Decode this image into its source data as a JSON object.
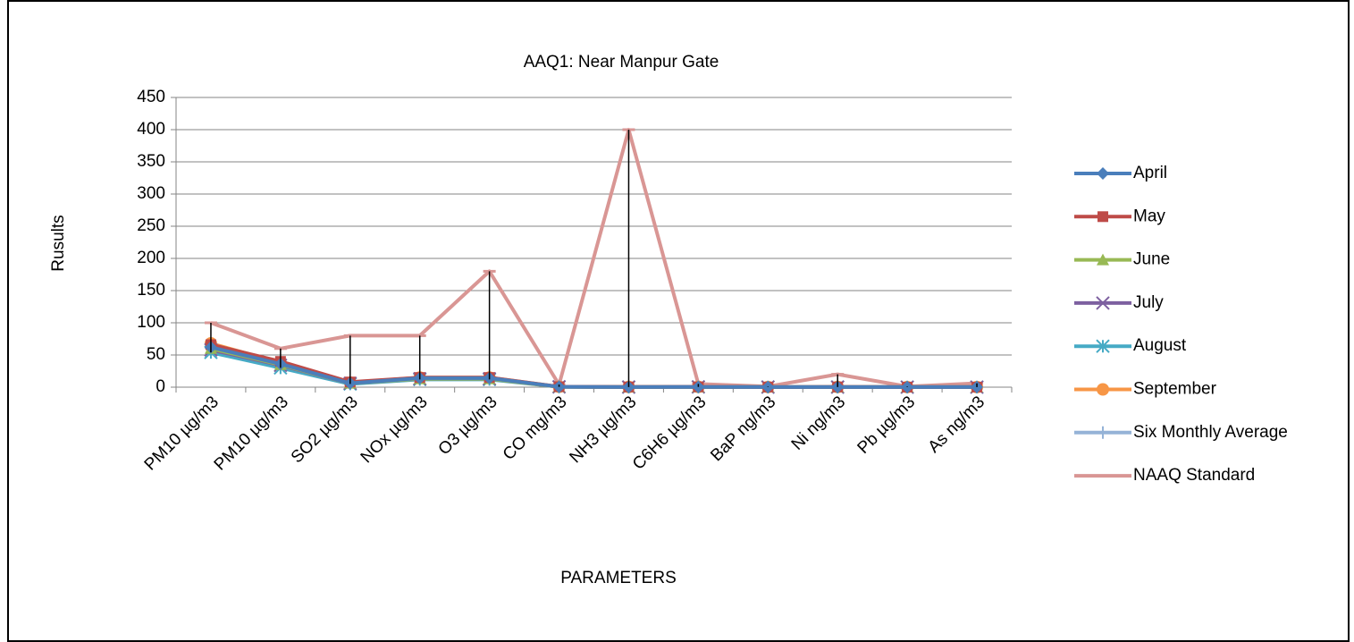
{
  "chart_data": {
    "type": "line",
    "title": "AAQ1: Near Manpur Gate",
    "y_label": "Rusults",
    "x_label": "PARAMETERS",
    "categories": [
      "PM10 µg/m3",
      "PM10 µg/m3",
      "SO2 µg/m3",
      "NOx µg/m3",
      "O3  µg/m3",
      "CO mg/m3",
      "NH3 µg/m3",
      "C6H6 µg/m3",
      "BaP ng/m3",
      "Ni ng/m3",
      "Pb µg/m3",
      "As ng/m3"
    ],
    "ylim": [
      0,
      450
    ],
    "yticks": [
      0,
      50,
      100,
      150,
      200,
      250,
      300,
      350,
      400,
      450
    ],
    "grid": true,
    "legend": "right",
    "high_low_lines": true,
    "series": [
      {
        "name": "April",
        "color": "#4a7ebb",
        "marker": "diamond",
        "values": [
          62,
          36,
          6,
          14,
          14,
          0.6,
          0.2,
          0.4,
          0.2,
          0.2,
          0.1,
          0.1
        ]
      },
      {
        "name": "May",
        "color": "#be4b48",
        "marker": "square",
        "values": [
          66,
          40,
          8,
          15,
          15,
          0.7,
          0.3,
          0.5,
          0.2,
          0.3,
          0.1,
          0.1
        ]
      },
      {
        "name": "June",
        "color": "#98b954",
        "marker": "triangle",
        "values": [
          60,
          35,
          6,
          13,
          13,
          0.5,
          0.2,
          0.4,
          0.2,
          0.2,
          0.1,
          0.1
        ]
      },
      {
        "name": "July",
        "color": "#7d60a0",
        "marker": "x",
        "values": [
          58,
          34,
          6,
          13,
          13,
          0.5,
          0.2,
          0.4,
          0.2,
          0.2,
          0.1,
          0.1
        ]
      },
      {
        "name": "August",
        "color": "#46aac5",
        "marker": "star",
        "values": [
          54,
          30,
          5,
          12,
          12,
          0.5,
          0.2,
          0.4,
          0.2,
          0.2,
          0.1,
          0.1
        ]
      },
      {
        "name": "September",
        "color": "#f79646",
        "marker": "circle",
        "values": [
          68,
          38,
          7,
          15,
          15,
          0.6,
          0.3,
          0.5,
          0.2,
          0.3,
          0.1,
          0.1
        ]
      },
      {
        "name": "Six Monthly Average",
        "color": "#95b3d7",
        "marker": "plus",
        "values": [
          61,
          36,
          6,
          14,
          14,
          0.6,
          0.2,
          0.4,
          0.2,
          0.2,
          0.1,
          0.1
        ]
      },
      {
        "name": "NAAQ Standard",
        "color": "#d99694",
        "marker": "dash",
        "values": [
          100,
          60,
          80,
          80,
          180,
          4,
          400,
          5,
          1,
          20,
          1,
          6
        ]
      }
    ]
  }
}
